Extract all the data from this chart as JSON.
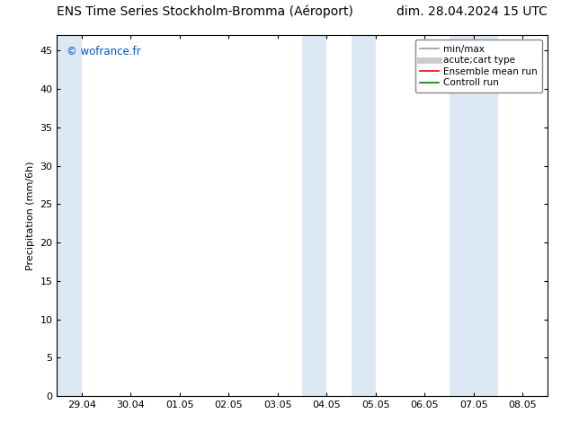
{
  "title_left": "ENS Time Series Stockholm-Bromma (Aéroport)",
  "title_right": "dim. 28.04.2024 15 UTC",
  "ylabel": "Precipitation (mm/6h)",
  "watermark": "© wofrance.fr",
  "x_tick_labels": [
    "29.04",
    "30.04",
    "01.05",
    "02.05",
    "03.05",
    "04.05",
    "05.05",
    "06.05",
    "07.05",
    "08.05"
  ],
  "x_tick_positions": [
    0,
    1,
    2,
    3,
    4,
    5,
    6,
    7,
    8,
    9
  ],
  "ylim": [
    0,
    47
  ],
  "yticks": [
    0,
    5,
    10,
    15,
    20,
    25,
    30,
    35,
    40,
    45
  ],
  "xlim": [
    -0.5,
    9.5
  ],
  "bg_color": "#ffffff",
  "plot_bg_color": "#ffffff",
  "shaded_regions": [
    {
      "x_start": -0.5,
      "x_end": 0.0,
      "color": "#dce9f5"
    },
    {
      "x_start": 4.5,
      "x_end": 5.0,
      "color": "#dce9f5"
    },
    {
      "x_start": 5.5,
      "x_end": 6.0,
      "color": "#dce9f5"
    },
    {
      "x_start": 7.5,
      "x_end": 8.5,
      "color": "#dce9f5"
    }
  ],
  "legend_entries": [
    {
      "label": "min/max",
      "color": "#999999",
      "lw": 1.2,
      "ls": "-"
    },
    {
      "label": "acute;cart type",
      "color": "#cccccc",
      "lw": 5,
      "ls": "-"
    },
    {
      "label": "Ensemble mean run",
      "color": "#ff0000",
      "lw": 1.2,
      "ls": "-"
    },
    {
      "label": "Controll run",
      "color": "#008000",
      "lw": 1.2,
      "ls": "-"
    }
  ],
  "watermark_color": "#0055cc",
  "title_fontsize": 10,
  "tick_fontsize": 8,
  "ylabel_fontsize": 8,
  "legend_fontsize": 7.5
}
